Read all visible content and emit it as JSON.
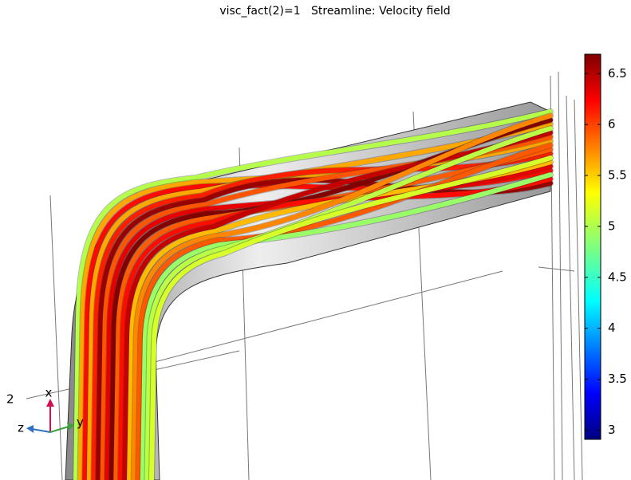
{
  "chart_data": {
    "type": "streamline",
    "title": "visc_fact(2)=1   Streamline: Velocity field",
    "colorbar": {
      "lim": [
        2.91,
        6.69
      ],
      "ticks": [
        3,
        3.5,
        4,
        4.5,
        5,
        5.5,
        6,
        6.5
      ]
    },
    "axis_label": "2",
    "triad": {
      "x": "x",
      "y": "y",
      "z": "z"
    }
  }
}
